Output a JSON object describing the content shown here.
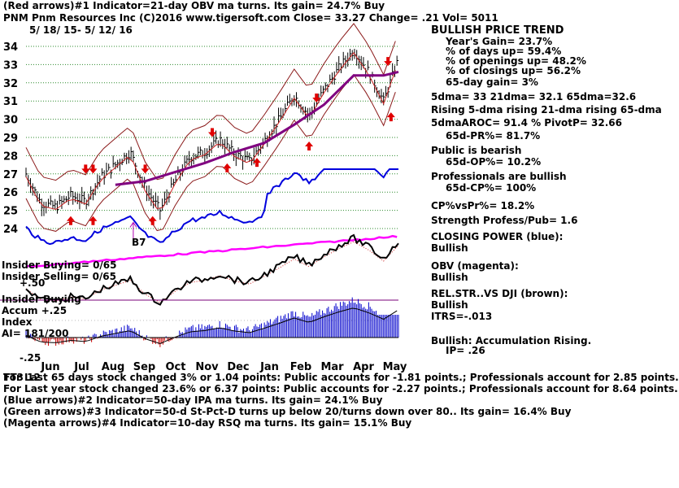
{
  "header": {
    "line1": "(Red arrows)#1 Indicator=21-day OBV ma turns. Its gain= 24.7% Buy",
    "line2": "PNM   Pnm Resources Inc  (C)2016 www.tigersoft.com     Close=  33.27  Change= .21 Vol= 5011",
    "dates": "5/ 18/ 15- 5/ 12/ 16"
  },
  "panel": {
    "title": "BULLISH PRICE TREND",
    "lines": [
      "Year's Gain= 23.7%",
      "% of days up= 59.4%",
      "% of openings up= 48.2%",
      "% of closings up= 56.2%",
      "65-day gain= 3%",
      "5dma= 33 21dma= 32.1 65dma=32.6",
      "Rising 5-dma rising 21-dma rising 65-dma",
      "5dmaAROC= 91.4 %  PivotP= 32.66",
      "65d-PR%= 81.7%",
      "Public is bearish",
      "65d-OP%= 10.2%",
      "Professionals are bullish",
      "65d-CP%= 100%",
      "CP%vsPr%=  18.2%",
      "Strength Profess/Pub= 1.6",
      "CLOSING POWER (blue):",
      "Bullish",
      "OBV (magenta):",
      "Bullish",
      "REL.STR..VS DJI (brown):",
      "Bullish",
      "ITRS=-.013",
      "Bullish: Accumulation Rising.",
      "IP=  .26"
    ]
  },
  "labels": {
    "insider_buying_1": "Insider Buying= 0/65",
    "insider_selling": "Insider Selling= 0/65",
    "plus50": "+.50",
    "insider_buying_2": "Insider Buying",
    "accum": "Accum  +.25",
    "index": "Index",
    "ai": "AI= 181/200",
    "minus25": "-.25",
    "b7": "B7",
    "extra": "TT3 12"
  },
  "footer": [
    "For Last 65 days stock changed  3% or  1.04 points:  Public accounts for -1.81 points.;  Professionals account for  2.85 points.",
    "For Last year stock changed  23.6% or  6.37 points:  Public accounts for -2.27 points.;  Professionals account for  8.64 points.",
    "(Blue arrows)#2 Indicator=50-day IPA ma turns. Its gain= 24.1% Buy",
    "(Green arrows)#3 Indicator=50-d St-Pct-D turns up below 20/turns down over 80..  Its gain= 16.4% Buy",
    "(Magenta arrows)#4 Indicator=10-day RSQ ma turns. Its gain= 15.1% Buy"
  ],
  "chart_data": {
    "type": "line",
    "ylim": [
      24,
      34
    ],
    "y_ticks": [
      34,
      33,
      32,
      31,
      30,
      29,
      28,
      27,
      26,
      25,
      24
    ],
    "months": [
      "Jun",
      "Jul",
      "Aug",
      "Sep",
      "Oct",
      "Nov",
      "Dec",
      "Jan",
      "Feb",
      "Mar",
      "Apr",
      "May"
    ],
    "series": [
      {
        "name": "price",
        "x": [
          0,
          10,
          20,
          30,
          40,
          50,
          60,
          70,
          80,
          90,
          100,
          110,
          120,
          130,
          140,
          150,
          160,
          170,
          180,
          190,
          200,
          210,
          220,
          230,
          240,
          250
        ],
        "values": [
          27.0,
          25.4,
          25.2,
          25.8,
          25.5,
          26.8,
          27.5,
          28.2,
          26.2,
          25.0,
          26.6,
          27.9,
          28.2,
          28.9,
          28.1,
          27.7,
          28.8,
          30.0,
          31.3,
          30.2,
          31.6,
          32.8,
          33.8,
          32.6,
          31.0,
          33.3
        ]
      },
      {
        "name": "65dma",
        "x": [
          60,
          80,
          100,
          120,
          140,
          160,
          180,
          200,
          220,
          240,
          250
        ],
        "values": [
          26.4,
          26.6,
          27.1,
          27.6,
          28.2,
          28.7,
          29.7,
          30.8,
          32.4,
          32.4,
          32.6
        ]
      }
    ],
    "arrows": {
      "red_down": [
        [
          40,
          27.2
        ],
        [
          45,
          27.2
        ],
        [
          80,
          27.2
        ],
        [
          125,
          29.2
        ],
        [
          195,
          31.1
        ],
        [
          243,
          33.1
        ]
      ],
      "red_up": [
        [
          30,
          24.5
        ],
        [
          45,
          24.5
        ],
        [
          85,
          24.5
        ],
        [
          135,
          27.4
        ],
        [
          155,
          27.7
        ],
        [
          190,
          28.6
        ],
        [
          245,
          30.2
        ]
      ],
      "magenta_up": [
        [
          72,
          23.8
        ]
      ]
    }
  }
}
